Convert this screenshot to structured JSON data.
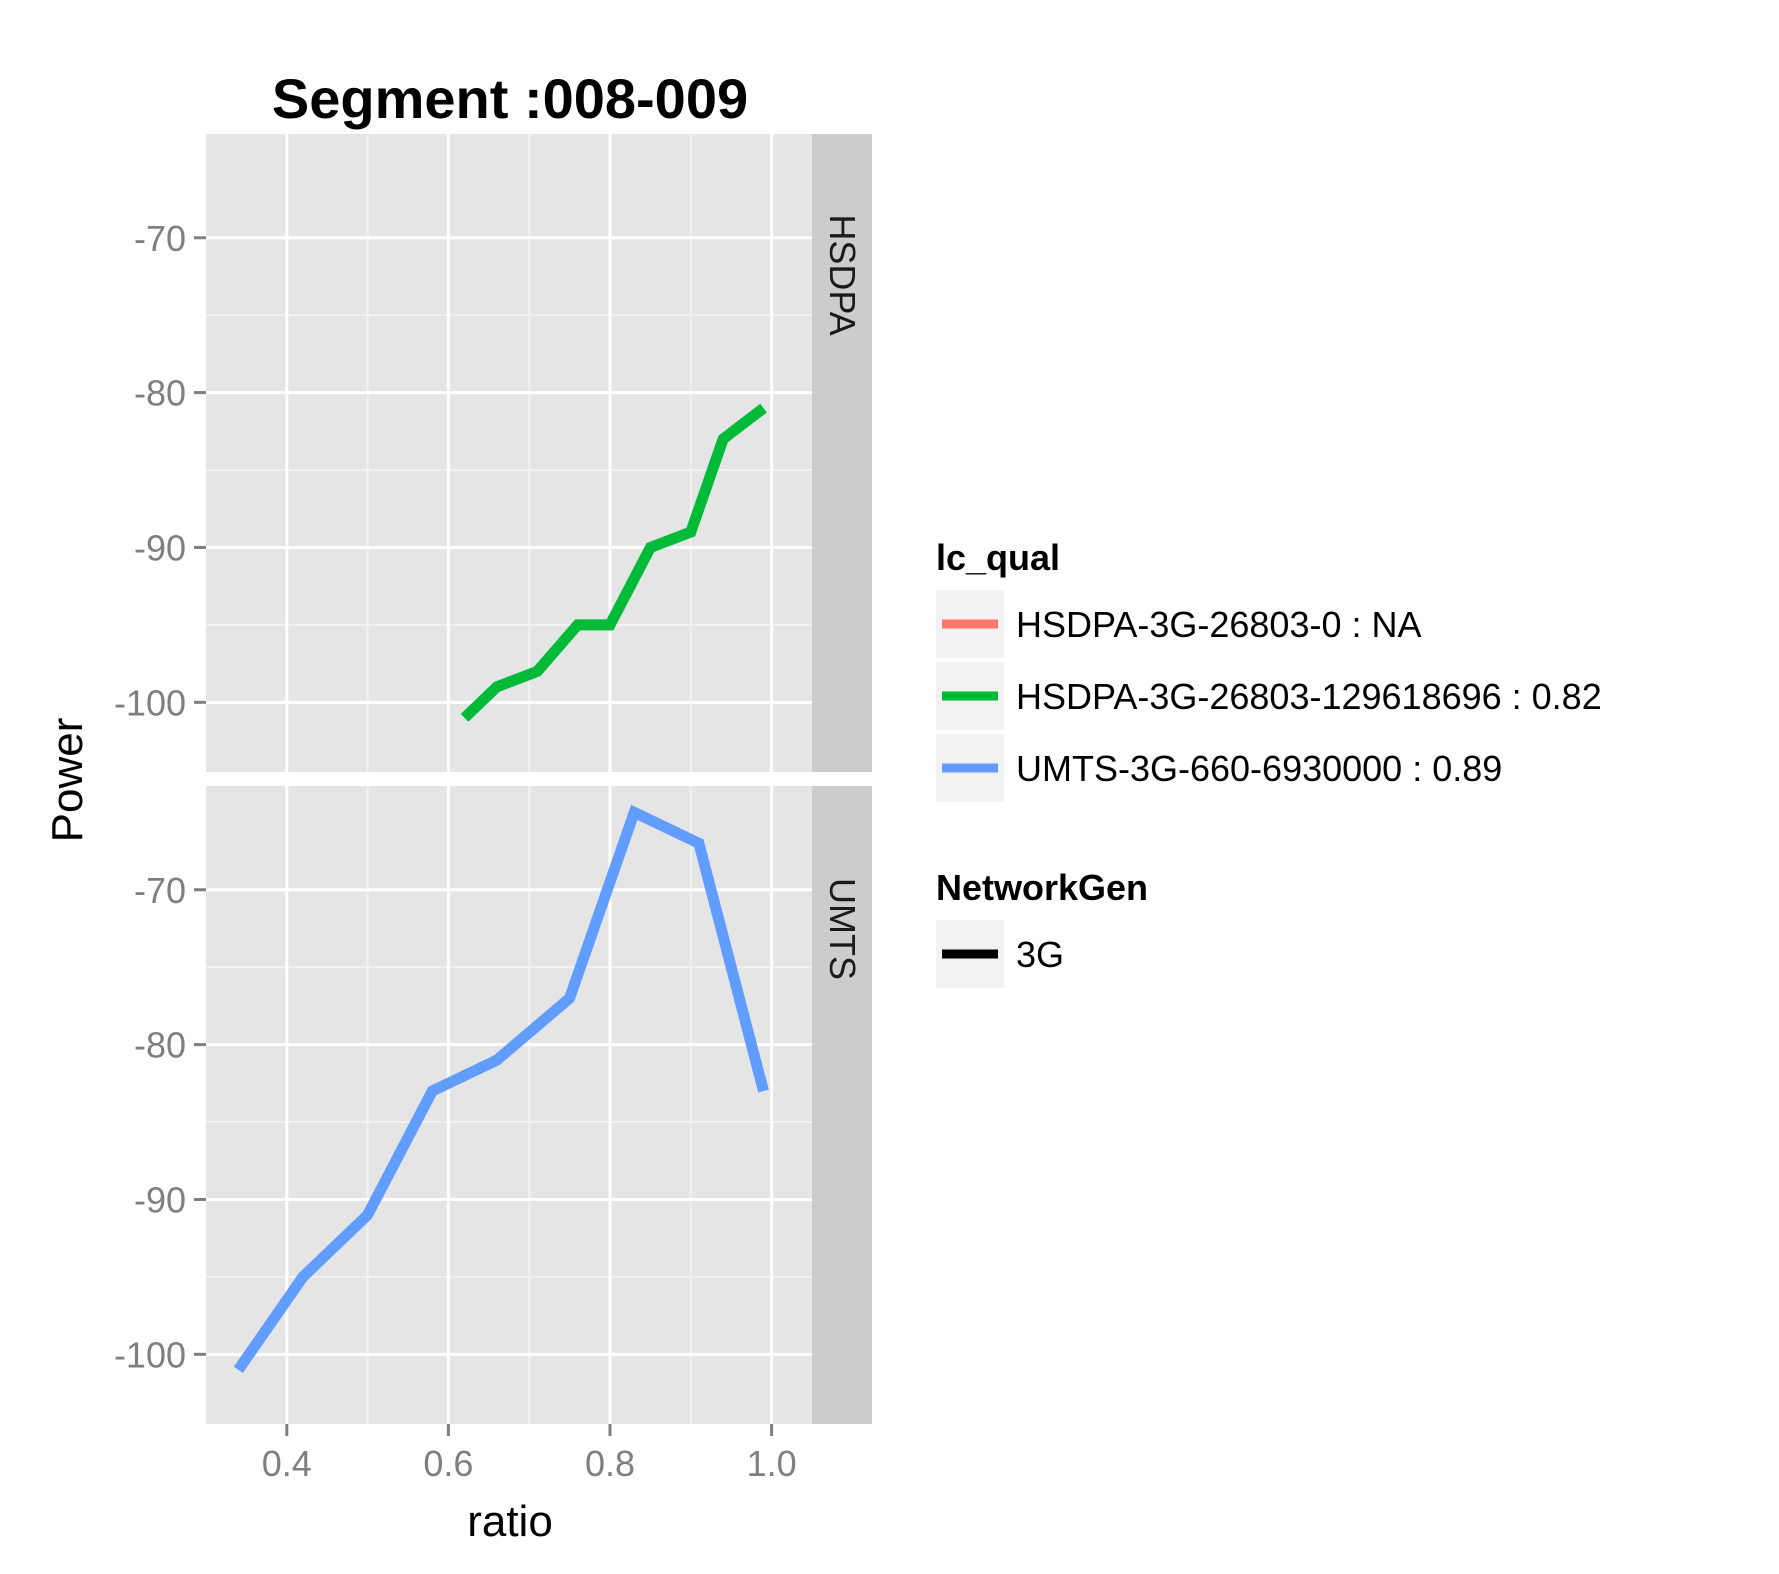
{
  "chart_data": {
    "type": "line",
    "title": "Segment :008-009",
    "xlabel": "ratio",
    "ylabel": "Power",
    "xlim": [
      0.3,
      1.05
    ],
    "x_ticks": [
      0.4,
      0.6,
      0.8,
      1.0
    ],
    "x_tick_labels": [
      "0.4",
      "0.6",
      "0.8",
      "1.0"
    ],
    "grid": true,
    "legend_position": "right",
    "facets": [
      {
        "label": "HSDPA",
        "ylim": [
          -104.5,
          -63.3
        ],
        "y_ticks": [
          -100,
          -90,
          -80,
          -70
        ],
        "y_tick_labels": [
          "-100",
          "-90",
          "-80",
          "-70"
        ],
        "series": [
          {
            "name": "HSDPA-3G-26803-129618696 : 0.82",
            "x": [
              0.62,
              0.66,
              0.71,
              0.76,
              0.8,
              0.85,
              0.9,
              0.94,
              0.99
            ],
            "y": [
              -101,
              -99,
              -98,
              -95,
              -95,
              -90,
              -89,
              -83,
              -81
            ]
          }
        ]
      },
      {
        "label": "UMTS",
        "ylim": [
          -104.5,
          -63.3
        ],
        "y_ticks": [
          -100,
          -90,
          -80,
          -70
        ],
        "y_tick_labels": [
          "-100",
          "-90",
          "-80",
          "-70"
        ],
        "series": [
          {
            "name": "UMTS-3G-660-6930000 : 0.89",
            "x": [
              0.34,
              0.42,
              0.5,
              0.58,
              0.66,
              0.75,
              0.83,
              0.91,
              0.99
            ],
            "y": [
              -101,
              -95,
              -91,
              -83,
              -81,
              -77,
              -65,
              -67,
              -83
            ]
          }
        ]
      }
    ],
    "legends": [
      {
        "title": "lc_qual",
        "items": [
          {
            "label": "HSDPA-3G-26803-0 : NA",
            "color": "#F8766D"
          },
          {
            "label": "HSDPA-3G-26803-129618696 : 0.82",
            "color": "#00BA38"
          },
          {
            "label": "UMTS-3G-660-6930000 : 0.89",
            "color": "#619CFF"
          }
        ]
      },
      {
        "title": "NetworkGen",
        "items": [
          {
            "label": "3G",
            "color": "#000000"
          }
        ]
      }
    ]
  },
  "colors": {
    "panel_bg": "#E5E5E5",
    "strip_bg": "#CCCCCC",
    "grid_major": "#FFFFFF",
    "grid_minor": "#F2F2F2",
    "tick_text": "#7F7F7F",
    "legend_key_bg": "#F2F2F2"
  }
}
